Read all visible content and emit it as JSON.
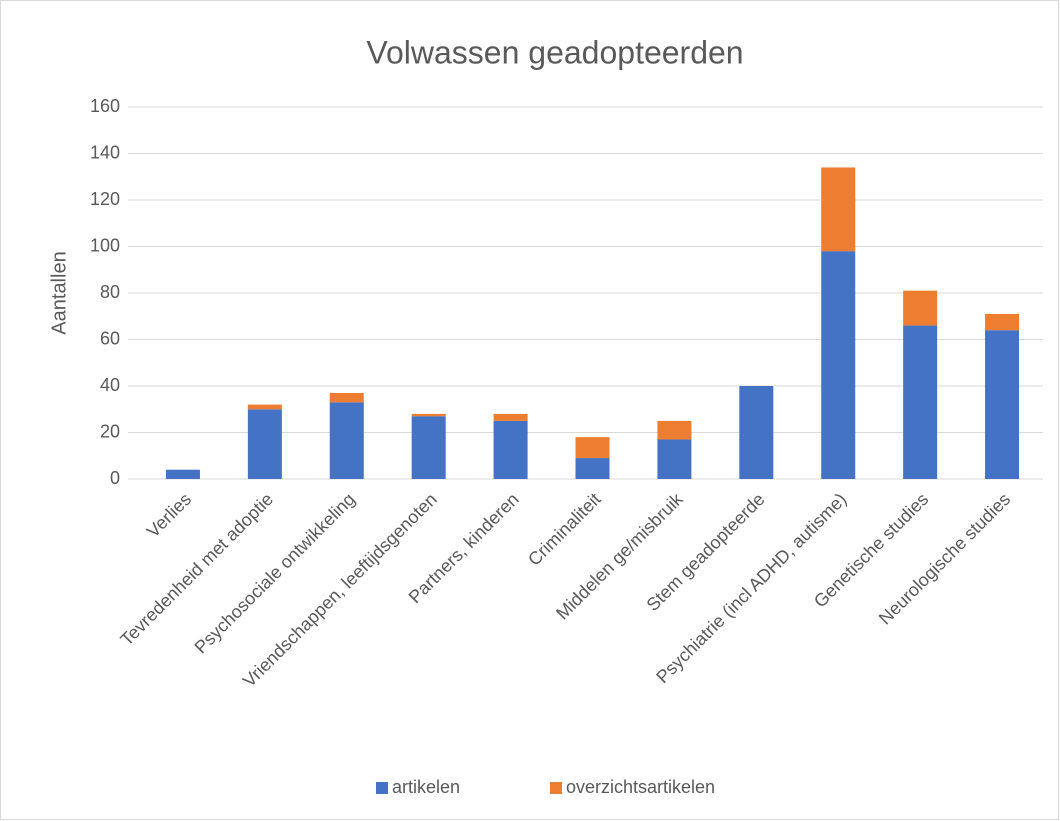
{
  "chart_data": {
    "type": "stacked_bar",
    "title": "Volwassen geadopteerden",
    "y_label": "Aantallen",
    "categories": [
      "Verlies",
      "Tevredenheid met adoptie",
      "Psychosociale ontwikkeling",
      "Vriendschappen, leeftijdsgenoten",
      "Partners, kinderen",
      "Criminaliteit",
      "Middelen ge/misbruik",
      "Stem geadopteerde",
      "Psychiatrie (incl ADHD, autisme)",
      "Genetische studies",
      "Neurologische studies"
    ],
    "series": [
      {
        "name": "artikelen",
        "color": "#4472c4",
        "values": [
          4,
          30,
          33,
          27,
          25,
          9,
          17,
          40,
          98,
          66,
          64
        ]
      },
      {
        "name": "overzichtsartikelen",
        "color": "#ed7d31",
        "values": [
          0,
          2,
          4,
          1,
          3,
          9,
          8,
          0,
          36,
          15,
          7
        ]
      }
    ],
    "ylim": [
      0,
      160
    ],
    "yticks": [
      0,
      20,
      40,
      60,
      80,
      100,
      120,
      140,
      160
    ],
    "grid": true,
    "legend": "bottom"
  }
}
